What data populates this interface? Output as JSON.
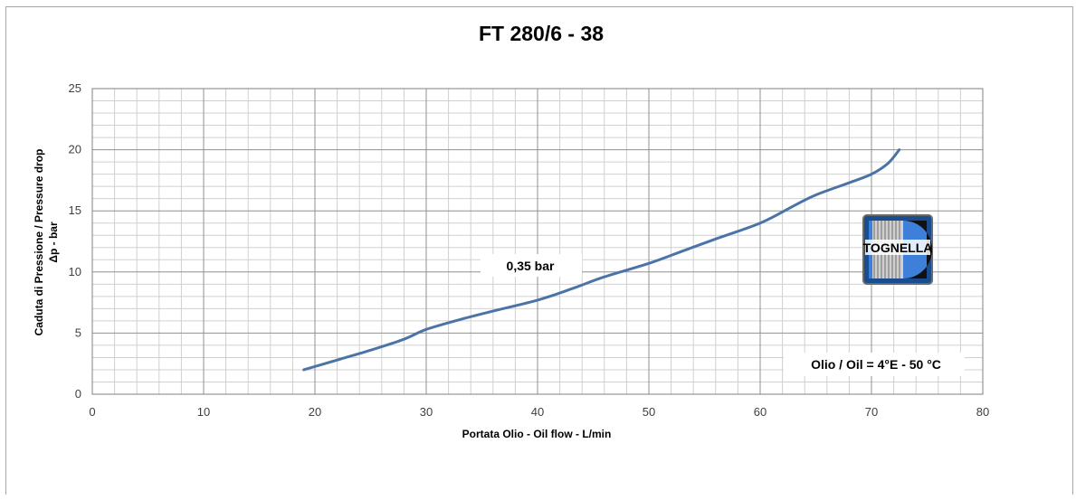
{
  "chart_data": {
    "type": "line",
    "title": "FT 280/6 - 38",
    "xlabel": "Portata Olio - Oil flow - L/min",
    "ylabel_line1": "Caduta di Pressione / Pressure drop",
    "ylabel_line2": "Δp - bar",
    "xlim": [
      0,
      80
    ],
    "ylim": [
      0,
      25
    ],
    "x_ticks": [
      "0",
      "10",
      "20",
      "30",
      "40",
      "50",
      "60",
      "70",
      "80"
    ],
    "y_ticks": [
      "0",
      "5",
      "10",
      "15",
      "20",
      "25"
    ],
    "grid": true,
    "series": [
      {
        "color": "#4a74a8",
        "x": [
          19,
          22,
          25,
          28,
          30,
          33,
          36,
          40,
          43,
          46,
          50,
          53,
          56,
          60,
          63,
          65,
          68,
          70,
          71.5,
          72.5
        ],
        "y": [
          2.0,
          2.8,
          3.6,
          4.5,
          5.3,
          6.1,
          6.8,
          7.7,
          8.6,
          9.6,
          10.7,
          11.7,
          12.7,
          14.0,
          15.4,
          16.3,
          17.3,
          18.0,
          18.9,
          20.0
        ]
      }
    ],
    "annotations": [
      {
        "text": "0,35 bar"
      },
      {
        "text": "Olio / Oil = 4°E - 50 °C"
      }
    ]
  },
  "logo": {
    "text": "TOGNELLA"
  }
}
